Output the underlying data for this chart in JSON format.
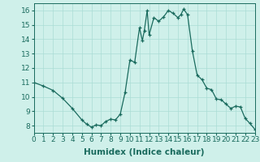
{
  "x": [
    0,
    1,
    2,
    3,
    4,
    5,
    5.5,
    6,
    6.5,
    7,
    7.5,
    8,
    8.5,
    9,
    9.5,
    10,
    10.5,
    11,
    11.3,
    11.5,
    11.8,
    12,
    12.5,
    13,
    13.5,
    14,
    14.5,
    15,
    15.3,
    15.6,
    16,
    16.5,
    17,
    17.5,
    18,
    18.5,
    19,
    19.5,
    20,
    20.5,
    21,
    21.5,
    22,
    22.5,
    23
  ],
  "y": [
    11.0,
    10.75,
    10.45,
    9.9,
    9.2,
    8.4,
    8.1,
    7.9,
    8.05,
    8.0,
    8.3,
    8.45,
    8.4,
    8.8,
    10.3,
    12.55,
    12.4,
    14.8,
    13.9,
    14.6,
    16.0,
    14.3,
    15.5,
    15.25,
    15.55,
    16.0,
    15.8,
    15.5,
    15.7,
    16.1,
    15.7,
    13.2,
    11.5,
    11.2,
    10.6,
    10.5,
    9.85,
    9.8,
    9.5,
    9.2,
    9.35,
    9.3,
    8.5,
    8.15,
    7.75
  ],
  "line_color": "#1a6b5e",
  "marker_color": "#1a6b5e",
  "bg_color": "#cff0ea",
  "grid_color": "#aaddd5",
  "xlabel": "Humidex (Indice chaleur)",
  "xlim": [
    0,
    23
  ],
  "ylim": [
    7.5,
    16.5
  ],
  "yticks": [
    8,
    9,
    10,
    11,
    12,
    13,
    14,
    15,
    16
  ],
  "xticks": [
    0,
    1,
    2,
    3,
    4,
    5,
    6,
    7,
    8,
    9,
    10,
    11,
    12,
    13,
    14,
    15,
    16,
    17,
    18,
    19,
    20,
    21,
    22,
    23
  ],
  "label_fontsize": 7.5,
  "tick_fontsize": 6.5
}
